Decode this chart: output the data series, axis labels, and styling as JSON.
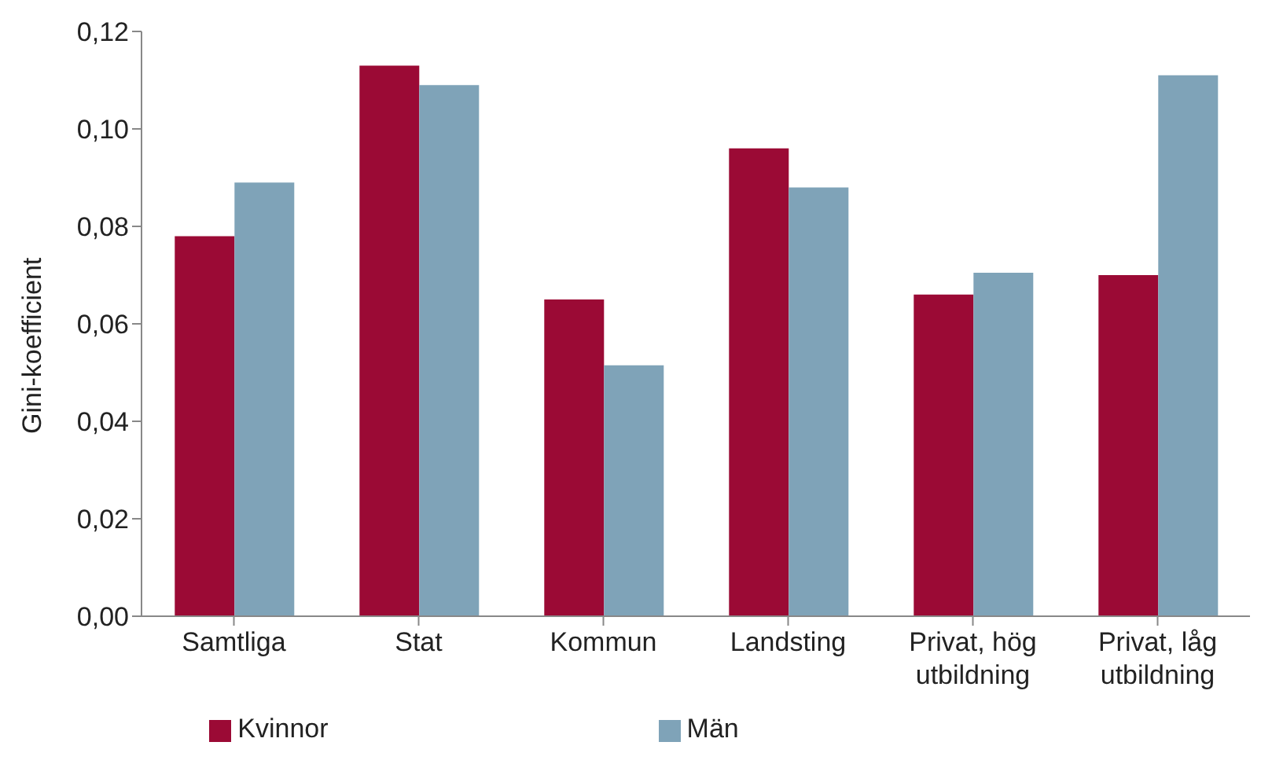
{
  "chart_data": {
    "type": "bar",
    "ylabel": "Gini-koefficient",
    "categories": [
      "Samtliga",
      "Stat",
      "Kommun",
      "Landsting",
      "Privat, hög utbildning",
      "Privat, låg utbildning"
    ],
    "series": [
      {
        "name": "Kvinnor",
        "color": "#9b0a35",
        "values": [
          0.078,
          0.113,
          0.065,
          0.096,
          0.066,
          0.07
        ]
      },
      {
        "name": "Män",
        "color": "#7fa3b8",
        "values": [
          0.089,
          0.109,
          0.0515,
          0.088,
          0.0705,
          0.111
        ]
      }
    ],
    "ylim": [
      0,
      0.12
    ],
    "yticks": [
      {
        "value": 0,
        "label": "0,00"
      },
      {
        "value": 0.02,
        "label": "0,02"
      },
      {
        "value": 0.04,
        "label": "0,04"
      },
      {
        "value": 0.06,
        "label": "0,06"
      },
      {
        "value": 0.08,
        "label": "0,08"
      },
      {
        "value": 0.1,
        "label": "0,10"
      },
      {
        "value": 0.12,
        "label": "0,12"
      }
    ],
    "grid": false,
    "legend": "bottom"
  }
}
